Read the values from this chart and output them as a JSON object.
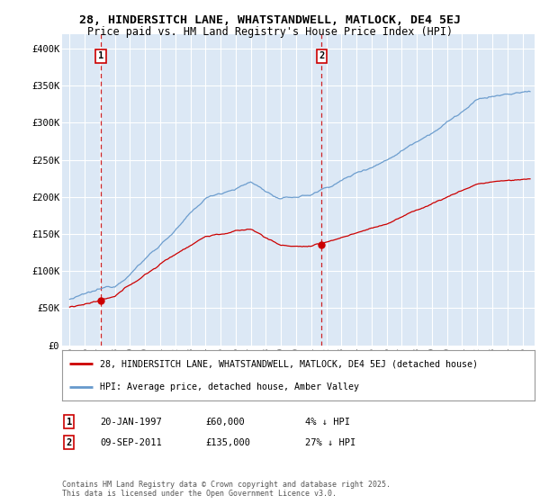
{
  "title_line1": "28, HINDERSITCH LANE, WHATSTANDWELL, MATLOCK, DE4 5EJ",
  "title_line2": "Price paid vs. HM Land Registry's House Price Index (HPI)",
  "ylabel_ticks": [
    "£0",
    "£50K",
    "£100K",
    "£150K",
    "£200K",
    "£250K",
    "£300K",
    "£350K",
    "£400K"
  ],
  "ytick_values": [
    0,
    50000,
    100000,
    150000,
    200000,
    250000,
    300000,
    350000,
    400000
  ],
  "ylim": [
    0,
    420000
  ],
  "legend_line1": "28, HINDERSITCH LANE, WHATSTANDWELL, MATLOCK, DE4 5EJ (detached house)",
  "legend_line2": "HPI: Average price, detached house, Amber Valley",
  "line_red_color": "#cc0000",
  "line_blue_color": "#6699cc",
  "dashed_line_color": "#cc0000",
  "annotation1_label": "1",
  "annotation1_date": "20-JAN-1997",
  "annotation1_price": "£60,000",
  "annotation1_hpi": "4% ↓ HPI",
  "annotation2_label": "2",
  "annotation2_date": "09-SEP-2011",
  "annotation2_price": "£135,000",
  "annotation2_hpi": "27% ↓ HPI",
  "copyright_text": "Contains HM Land Registry data © Crown copyright and database right 2025.\nThis data is licensed under the Open Government Licence v3.0.",
  "plot_bg_color": "#dce8f5",
  "grid_color": "#ffffff",
  "sale1_year": 1997.055,
  "sale1_price": 60000,
  "sale2_year": 2011.69,
  "sale2_price": 135000,
  "xlim_left": 1994.5,
  "xlim_right": 2025.8,
  "xtick_start": 1995,
  "xtick_end": 2025
}
